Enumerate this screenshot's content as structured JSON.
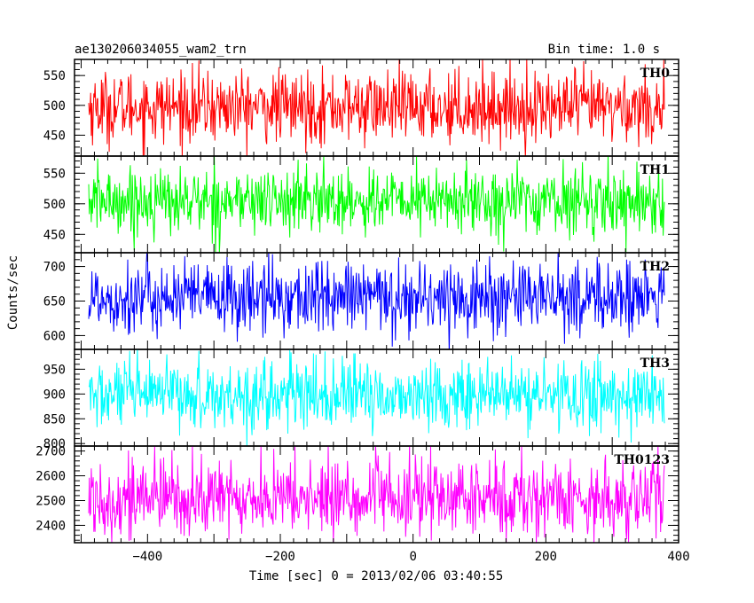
{
  "header": {
    "title": "ae130206034055_wam2_trn",
    "bin_time": "Bin time: 1.0 s"
  },
  "axes": {
    "ylabel": "Counts/sec",
    "xlabel": "Time [sec] 0 = 2013/02/06 03:40:55"
  },
  "chart_data": {
    "type": "line",
    "x_range": [
      -510,
      400
    ],
    "x_ticks": [
      -400,
      -200,
      0,
      200,
      400
    ],
    "bin_time_s": 1.0,
    "panels": [
      {
        "name": "TH0",
        "color": "#ff0000",
        "mean": 497,
        "noise_sd": 30,
        "ylim": [
          415,
          577
        ],
        "yticks": [
          450,
          500,
          550
        ],
        "values": []
      },
      {
        "name": "TH1",
        "color": "#00ff00",
        "mean": 505,
        "noise_sd": 27,
        "ylim": [
          420,
          578
        ],
        "yticks": [
          450,
          500,
          550
        ],
        "values": []
      },
      {
        "name": "TH2",
        "color": "#0000ff",
        "mean": 655,
        "noise_sd": 27,
        "ylim": [
          580,
          720
        ],
        "yticks": [
          600,
          650,
          700
        ],
        "values": []
      },
      {
        "name": "TH3",
        "color": "#00ffff",
        "mean": 897,
        "noise_sd": 35,
        "ylim": [
          795,
          990
        ],
        "yticks": [
          800,
          850,
          900,
          950
        ],
        "values": []
      },
      {
        "name": "TH0123",
        "color": "#ff00ff",
        "mean": 2510,
        "noise_sd": 80,
        "ylim": [
          2330,
          2720
        ],
        "yticks": [
          2400,
          2500,
          2600,
          2700
        ],
        "values": []
      }
    ]
  }
}
